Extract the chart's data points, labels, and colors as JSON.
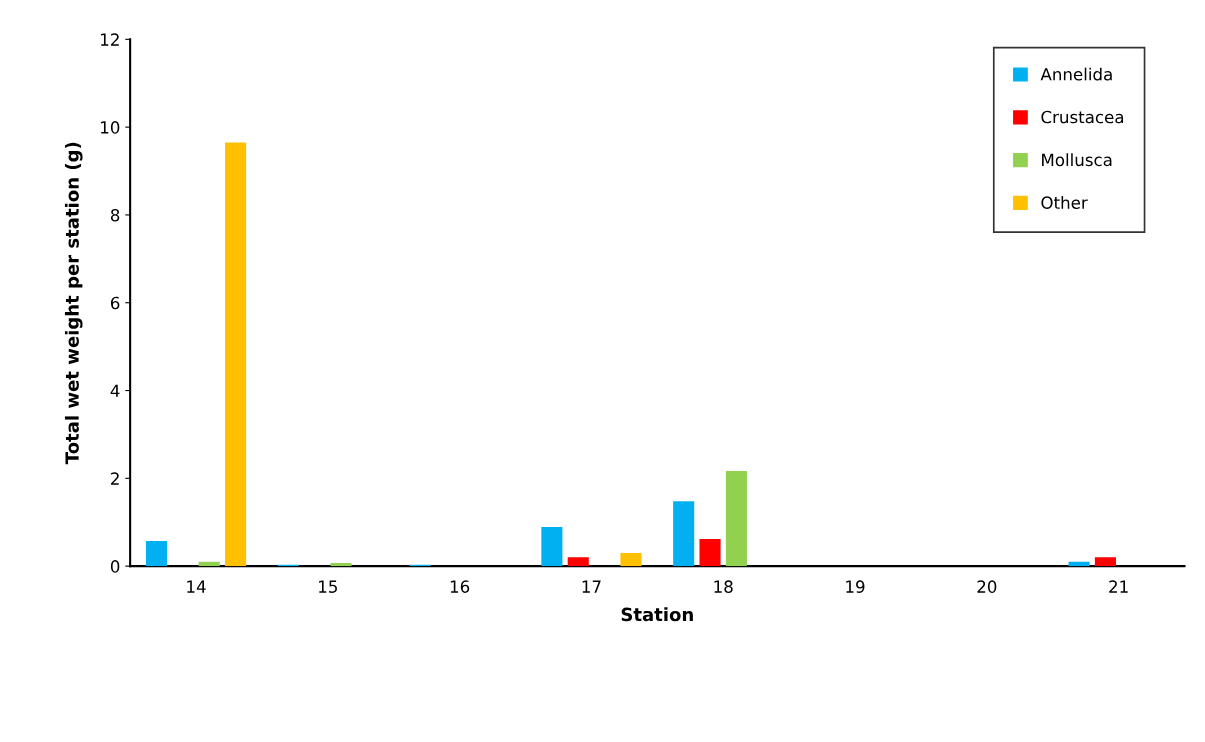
{
  "chart_data": {
    "type": "bar",
    "xlabel": "Station",
    "ylabel": "Total wet weight per station (g)",
    "categories": [
      "14",
      "15",
      "16",
      "17",
      "18",
      "19",
      "20",
      "21"
    ],
    "series": [
      {
        "name": "Annelida",
        "color": "#00b0f0",
        "values": [
          0.57,
          0.03,
          0.03,
          0.89,
          1.48,
          0,
          0,
          0.1
        ]
      },
      {
        "name": "Crustacea",
        "color": "#ff0000",
        "values": [
          0,
          0,
          0,
          0.2,
          0.62,
          0,
          0,
          0.2
        ]
      },
      {
        "name": "Mollusca",
        "color": "#92d050",
        "values": [
          0.1,
          0.07,
          0,
          0,
          2.17,
          0,
          0,
          0
        ]
      },
      {
        "name": "Other",
        "color": "#ffc000",
        "values": [
          9.65,
          0,
          0,
          0.3,
          0,
          0,
          0,
          0
        ]
      }
    ],
    "ylim": [
      0,
      12
    ],
    "yticks": [
      0,
      2,
      4,
      6,
      8,
      10,
      12
    ],
    "grid": false,
    "legend": "top right"
  }
}
